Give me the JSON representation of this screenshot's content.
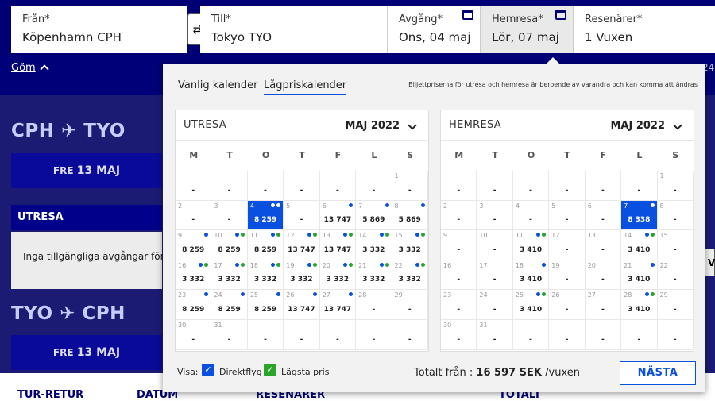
{
  "search": {
    "from": {
      "label": "Från*",
      "value": "Köpenhamn CPH"
    },
    "to": {
      "label": "Till*",
      "value": "Tokyo TYO"
    },
    "depart": {
      "label": "Avgång*",
      "value": "Ons, 04 maj"
    },
    "return": {
      "label": "Hemresa*",
      "value": "Lör, 07 maj"
    },
    "travellers": {
      "label": "Resenärer*",
      "value": "1 Vuxen"
    },
    "swap_glyph": "⇄"
  },
  "background": {
    "gom": "Göm",
    "route_out": "CPH ✈ TYO",
    "route_back": "TYO ✈ CPH",
    "day_out": {
      "weekday": "FRE",
      "date": "13 MAJ"
    },
    "day_back": {
      "weekday": "FRE",
      "date": "13 MAJ"
    },
    "utresa": "UTRESA",
    "no_departures": "Inga tillgängliga avgångar för de",
    "side_tab": "V",
    "badge_text": "24",
    "bottom_cols": [
      "TUR-RETUR",
      "DATUM",
      "RESENÄRER",
      "TOTALT"
    ]
  },
  "popup": {
    "tab_regular": "Vanlig kalender",
    "tab_lowprice": "Lågpriskalender",
    "note": "Biljettpriserna för utresa och hemresa är beroende av varandra och kan komma att ändras",
    "weekdays": [
      "M",
      "T",
      "O",
      "T",
      "F",
      "L",
      "S"
    ],
    "colors": {
      "blue_dot": "#0a50e0",
      "green_dot": "#2aa52a",
      "selected": "#0a50e0"
    },
    "outbound": {
      "heading": "UTRESA",
      "month": "MAJ 2022",
      "weeks": [
        [
          {
            "d": "",
            "p": "-"
          },
          {
            "d": "",
            "p": "-"
          },
          {
            "d": "",
            "p": "-"
          },
          {
            "d": "",
            "p": "-"
          },
          {
            "d": "",
            "p": "-"
          },
          {
            "d": "",
            "p": "-"
          },
          {
            "d": "1",
            "p": "-"
          }
        ],
        [
          {
            "d": "2",
            "p": "-"
          },
          {
            "d": "3",
            "p": "-"
          },
          {
            "d": "4",
            "p": "8 259",
            "dots": [
              "w",
              "w"
            ],
            "sel": true
          },
          {
            "d": "5",
            "p": "-"
          },
          {
            "d": "6",
            "p": "13 747",
            "dots": [
              "b"
            ]
          },
          {
            "d": "7",
            "p": "5 869",
            "dots": [
              "b"
            ]
          },
          {
            "d": "8",
            "p": "5 869",
            "dots": [
              "b"
            ]
          }
        ],
        [
          {
            "d": "9",
            "p": "8 259",
            "dots": [
              "b"
            ]
          },
          {
            "d": "10",
            "p": "8 259",
            "dots": [
              "b",
              "g"
            ]
          },
          {
            "d": "11",
            "p": "8 259",
            "dots": [
              "b",
              "g"
            ]
          },
          {
            "d": "12",
            "p": "13 747",
            "dots": [
              "b",
              "g"
            ]
          },
          {
            "d": "13",
            "p": "13 747",
            "dots": [
              "b",
              "g"
            ]
          },
          {
            "d": "14",
            "p": "3 332",
            "dots": [
              "b",
              "g"
            ]
          },
          {
            "d": "15",
            "p": "3 332",
            "dots": [
              "b",
              "g"
            ]
          }
        ],
        [
          {
            "d": "16",
            "p": "3 332",
            "dots": [
              "b",
              "g"
            ]
          },
          {
            "d": "17",
            "p": "3 332",
            "dots": [
              "b",
              "g"
            ]
          },
          {
            "d": "18",
            "p": "3 332",
            "dots": [
              "b",
              "g"
            ]
          },
          {
            "d": "19",
            "p": "3 332",
            "dots": [
              "b",
              "g"
            ]
          },
          {
            "d": "20",
            "p": "3 332",
            "dots": [
              "b",
              "g"
            ]
          },
          {
            "d": "21",
            "p": "3 332",
            "dots": [
              "b",
              "g"
            ]
          },
          {
            "d": "22",
            "p": "3 332",
            "dots": [
              "b",
              "g"
            ]
          }
        ],
        [
          {
            "d": "23",
            "p": "8 259",
            "dots": [
              "b"
            ]
          },
          {
            "d": "24",
            "p": "8 259",
            "dots": [
              "b"
            ]
          },
          {
            "d": "25",
            "p": "8 259",
            "dots": [
              "b"
            ]
          },
          {
            "d": "26",
            "p": "13 747",
            "dots": [
              "b"
            ]
          },
          {
            "d": "27",
            "p": "13 747",
            "dots": [
              "b"
            ]
          },
          {
            "d": "28",
            "p": "-"
          },
          {
            "d": "29",
            "p": "-"
          }
        ],
        [
          {
            "d": "30",
            "p": "-"
          },
          {
            "d": "31",
            "p": "-"
          },
          {
            "d": "",
            "p": "-"
          },
          {
            "d": "",
            "p": "-"
          },
          {
            "d": "",
            "p": "-"
          },
          {
            "d": "",
            "p": "-"
          },
          {
            "d": "",
            "p": "-"
          }
        ]
      ]
    },
    "inbound": {
      "heading": "HEMRESA",
      "month": "MAJ 2022",
      "weeks": [
        [
          {
            "d": "",
            "p": "-"
          },
          {
            "d": "",
            "p": "-"
          },
          {
            "d": "",
            "p": "-"
          },
          {
            "d": "",
            "p": "-"
          },
          {
            "d": "",
            "p": "-"
          },
          {
            "d": "",
            "p": "-"
          },
          {
            "d": "1",
            "p": "-"
          }
        ],
        [
          {
            "d": "2",
            "p": "-"
          },
          {
            "d": "3",
            "p": "-"
          },
          {
            "d": "4",
            "p": "-"
          },
          {
            "d": "5",
            "p": "-"
          },
          {
            "d": "6",
            "p": "-"
          },
          {
            "d": "7",
            "p": "8 338",
            "dots": [
              "w"
            ],
            "sel": true
          },
          {
            "d": "8",
            "p": "-"
          }
        ],
        [
          {
            "d": "9",
            "p": "-"
          },
          {
            "d": "10",
            "p": "-"
          },
          {
            "d": "11",
            "p": "3 410",
            "dots": [
              "b",
              "g"
            ]
          },
          {
            "d": "12",
            "p": "-"
          },
          {
            "d": "13",
            "p": "-"
          },
          {
            "d": "14",
            "p": "3 410",
            "dots": [
              "b",
              "g"
            ]
          },
          {
            "d": "15",
            "p": "-"
          }
        ],
        [
          {
            "d": "16",
            "p": "-"
          },
          {
            "d": "17",
            "p": "-"
          },
          {
            "d": "18",
            "p": "3 410",
            "dots": [
              "b"
            ]
          },
          {
            "d": "19",
            "p": "-"
          },
          {
            "d": "20",
            "p": "-"
          },
          {
            "d": "21",
            "p": "3 410",
            "dots": [
              "b"
            ]
          },
          {
            "d": "22",
            "p": "-"
          }
        ],
        [
          {
            "d": "23",
            "p": "-"
          },
          {
            "d": "24",
            "p": "-"
          },
          {
            "d": "25",
            "p": "3 410",
            "dots": [
              "b",
              "g"
            ]
          },
          {
            "d": "26",
            "p": "-"
          },
          {
            "d": "27",
            "p": "-"
          },
          {
            "d": "28",
            "p": "3 410",
            "dots": [
              "b",
              "g"
            ]
          },
          {
            "d": "29",
            "p": "-"
          }
        ],
        [
          {
            "d": "30",
            "p": "-"
          },
          {
            "d": "31",
            "p": "-"
          },
          {
            "d": "",
            "p": "-"
          },
          {
            "d": "",
            "p": "-"
          },
          {
            "d": "",
            "p": "-"
          },
          {
            "d": "",
            "p": "-"
          },
          {
            "d": "",
            "p": "-"
          }
        ]
      ]
    },
    "visa_label": "Visa:",
    "filter_direct": {
      "label": "Direktflyg",
      "checked": true
    },
    "filter_lowest": {
      "label": "Lägsta pris",
      "checked": true
    },
    "total_prefix": "Totalt från :",
    "total_amount": "16 597 SEK",
    "total_suffix": "/vuxen",
    "next_button": "NÄSTA"
  }
}
